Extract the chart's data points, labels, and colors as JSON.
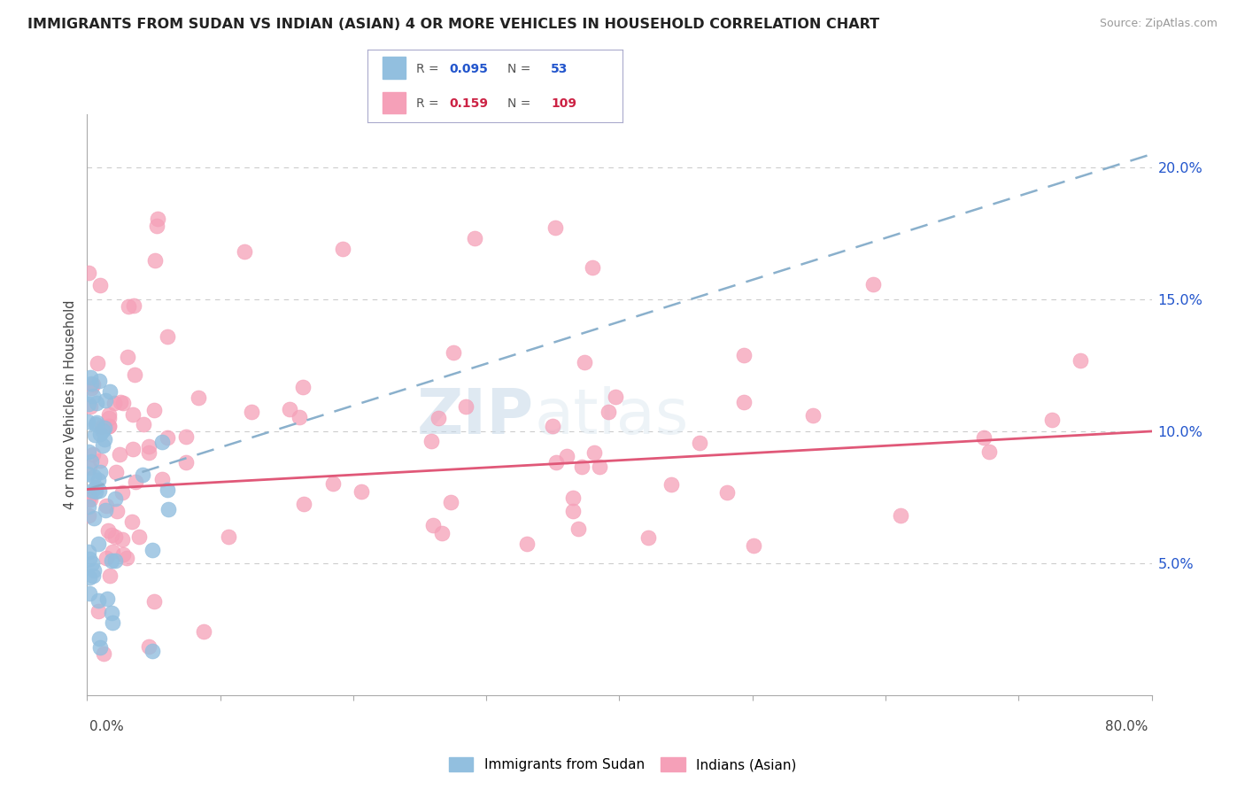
{
  "title": "IMMIGRANTS FROM SUDAN VS INDIAN (ASIAN) 4 OR MORE VEHICLES IN HOUSEHOLD CORRELATION CHART",
  "source": "Source: ZipAtlas.com",
  "ylabel": "4 or more Vehicles in Household",
  "xlim": [
    0.0,
    80.0
  ],
  "ylim": [
    0.0,
    22.0
  ],
  "ytick_vals": [
    5.0,
    10.0,
    15.0,
    20.0
  ],
  "ytick_labels": [
    "5.0%",
    "10.0%",
    "15.0%",
    "20.0%"
  ],
  "blue_color": "#92bfdf",
  "pink_color": "#f5a0b8",
  "trend_blue_color": "#8ab0cc",
  "trend_pink_color": "#e05878",
  "watermark_zip": "ZIP",
  "watermark_atlas": "atlas",
  "legend1_label": "Immigrants from Sudan",
  "legend2_label": "Indians (Asian)",
  "r_blue": "0.095",
  "n_blue": "53",
  "r_pink": "0.159",
  "n_pink": "109",
  "r_label_color_blue": "#2255cc",
  "r_label_color_pink": "#cc2244",
  "grid_color": "#cccccc",
  "axis_color": "#aaaaaa",
  "blue_trend_y0": 7.8,
  "blue_trend_y1": 20.5,
  "pink_trend_y0": 7.8,
  "pink_trend_y1": 10.0
}
